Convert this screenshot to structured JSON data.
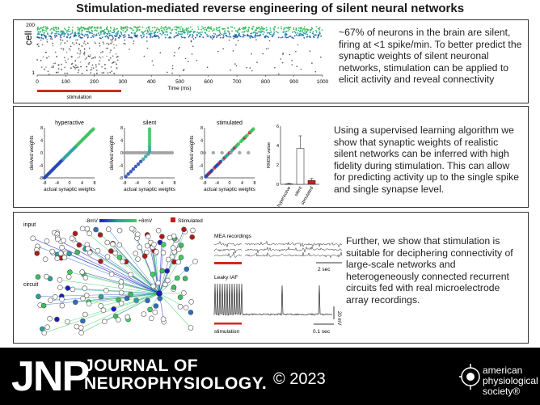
{
  "title": "Stimulation-mediated reverse engineering of silent neural networks",
  "panel1": {
    "text": "~67% of neurons in the brain are silent, firing at <1 spike/min. To better predict the synaptic weights of silent neuronal networks, stimulation can be applied to elicit activity and reveal connectivity",
    "raster": {
      "ylabel": "cell",
      "xlabel": "Time (ms)",
      "yticks": [
        "200",
        "1"
      ],
      "xticks": [
        "0",
        "100",
        "200",
        "300",
        "400",
        "500",
        "600",
        "700",
        "800",
        "900",
        "1000"
      ],
      "stim_label": "stimulation"
    }
  },
  "panel2": {
    "text": "Using a supervised learning algorithm we show that synaptic weights of realistic silent networks can be inferred with high fidelity during stimulation. This can allow for predicting activity up to the single spike and single synapse level.",
    "plots": [
      {
        "title": "hyperactive"
      },
      {
        "title": "silent"
      },
      {
        "title": "stimulated"
      }
    ],
    "xlabel": "actual synaptic weights",
    "ylabel": "derived weights",
    "ticks": [
      "-8",
      "-4",
      "0",
      "4",
      "8"
    ],
    "bar": {
      "ylabel": "RMSE value",
      "yticks": [
        "0",
        "2",
        "4",
        "6"
      ],
      "categories": [
        "hyperactive",
        "silent",
        "stimulated"
      ],
      "values": [
        0.05,
        3.7,
        0.4
      ],
      "errors": [
        0.05,
        1.3,
        0.2
      ],
      "colors": [
        "#ffffff",
        "#ffffff",
        "#c0201a"
      ]
    }
  },
  "panel3": {
    "text": "Further, we show that stimulation is suitable for deciphering connectivity of large-scale networks and heterogeneously connected recurrent circuits fed with real microelectrode array recordings.",
    "network": {
      "input_label": "input",
      "circuit_label": "circuit",
      "legend_min": "-8mV",
      "legend_max": "+8mV",
      "legend_stim": "Stimulated"
    },
    "mea": {
      "label": "MEA recordings",
      "scale": "2 sec"
    },
    "iaf": {
      "label": "Leaky IAF",
      "scale_y": "20 mV",
      "scale_x": "0.1 sec",
      "stim_label": "stimulation"
    }
  },
  "footer": {
    "logo": "JNP",
    "journal_line1": "JOURNAL OF",
    "journal_line2": "NEUROPHYSIOLOGY.",
    "copyright": "© 2023",
    "society": [
      "american",
      "physiological",
      "society®"
    ]
  },
  "colors": {
    "accent_red": "#d0281e",
    "green": "#3bbf5a",
    "blue": "#1e5fa8",
    "teal": "#2aa0a0"
  }
}
